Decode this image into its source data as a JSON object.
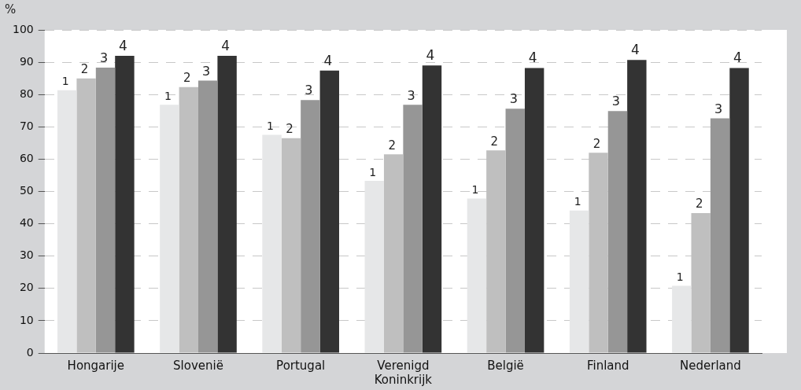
{
  "chart_data": {
    "type": "bar",
    "ylabel": "%",
    "categories": [
      "Hongarije",
      "Slovenië",
      "Portugal",
      [
        "Verenigd",
        "Koninkrijk"
      ],
      "België",
      "Finland",
      "Nederland"
    ],
    "series": [
      {
        "name": "1",
        "color": "#e6e7e8",
        "values": [
          81.3,
          76.8,
          67.5,
          53.3,
          47.8,
          44.1,
          20.8
        ]
      },
      {
        "name": "2",
        "color": "#bfbfbf",
        "values": [
          85,
          82.3,
          66.5,
          61.5,
          62.7,
          62,
          43.3
        ]
      },
      {
        "name": "3",
        "color": "#969696",
        "values": [
          88.3,
          84.3,
          78.3,
          76.8,
          75.6,
          74.9,
          72.6
        ]
      },
      {
        "name": "4",
        "color": "#333333",
        "values": [
          92,
          92,
          87.4,
          89,
          88.2,
          90.7,
          88.2
        ]
      }
    ],
    "ylim": [
      0,
      100
    ],
    "yticks": [
      0,
      10,
      20,
      30,
      40,
      50,
      60,
      70,
      80,
      90,
      100
    ],
    "grid": "y",
    "legend": false
  }
}
